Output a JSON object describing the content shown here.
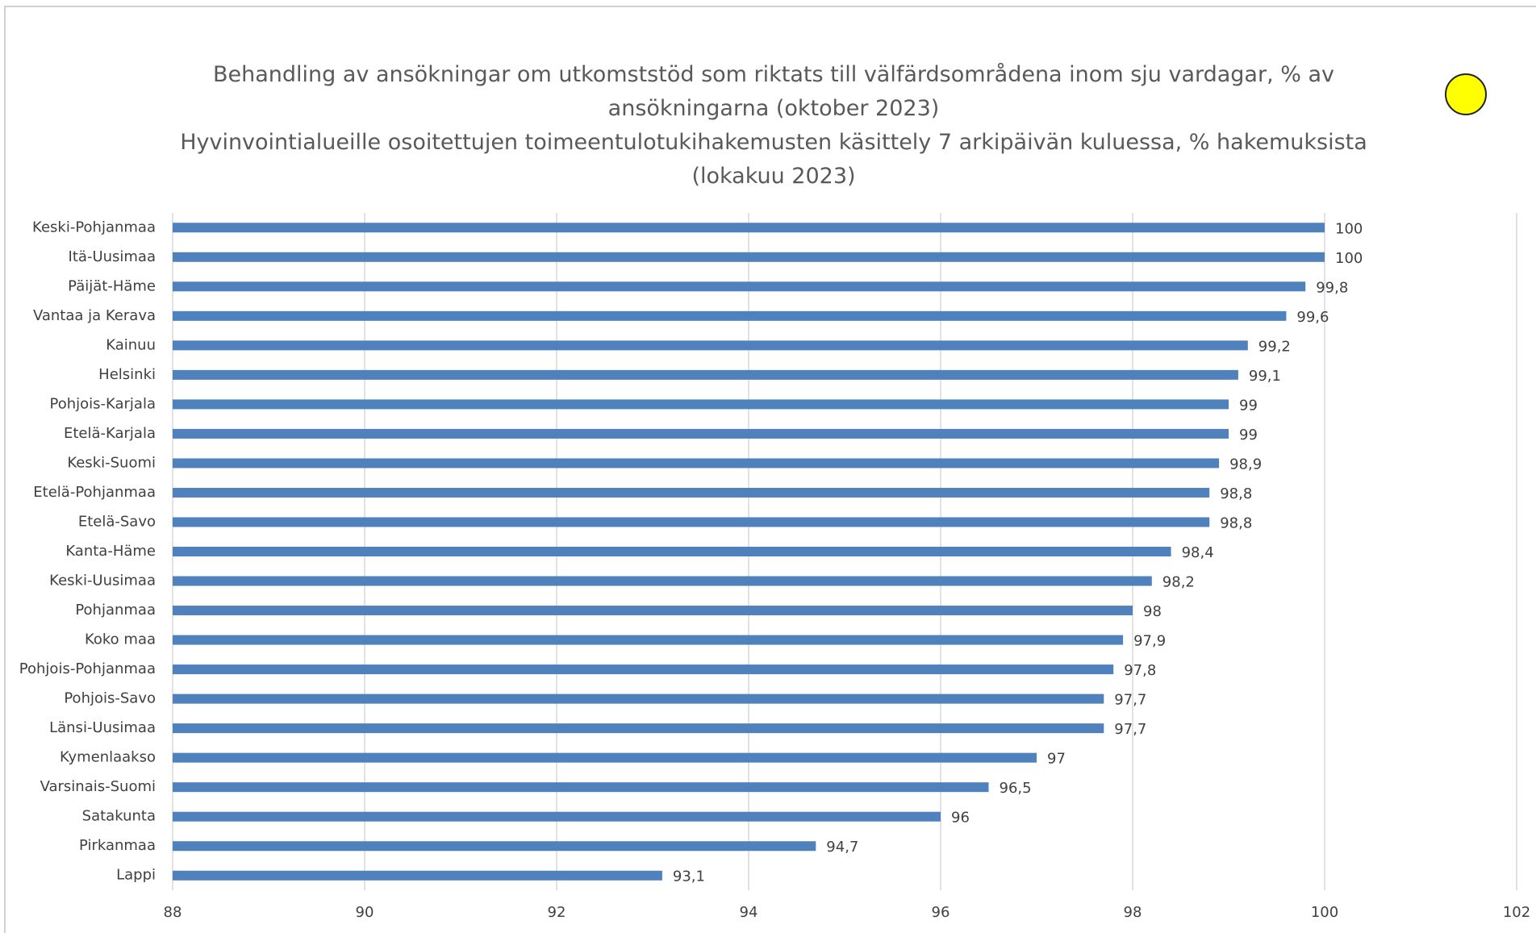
{
  "chart_data": {
    "type": "bar",
    "orientation": "horizontal",
    "title": "Behandling av ansökningar om utkomststöd som riktats till välfärdsområdena inom sju vardagar, % av ansökningarna (oktober 2023)",
    "subtitle": "Hyvinvointialueille osoitettujen toimeentulotukihakemusten käsittely 7 arkipäivän kuluessa, % hakemuksista (lokakuu 2023)",
    "categories": [
      "Keski-Pohjanmaa",
      "Itä-Uusimaa",
      "Päijät-Häme",
      "Vantaa ja Kerava",
      "Kainuu",
      "Helsinki",
      "Pohjois-Karjala",
      "Etelä-Karjala",
      "Keski-Suomi",
      "Etelä-Pohjanmaa",
      "Etelä-Savo",
      "Kanta-Häme",
      "Keski-Uusimaa",
      "Pohjanmaa",
      "Koko maa",
      "Pohjois-Pohjanmaa",
      "Pohjois-Savo",
      "Länsi-Uusimaa",
      "Kymenlaakso",
      "Varsinais-Suomi",
      "Satakunta",
      "Pirkanmaa",
      "Lappi"
    ],
    "values": [
      100,
      100,
      99.8,
      99.6,
      99.2,
      99.1,
      99,
      99,
      98.9,
      98.8,
      98.8,
      98.4,
      98.2,
      98,
      97.9,
      97.8,
      97.7,
      97.7,
      97,
      96.5,
      96,
      94.7,
      93.1
    ],
    "value_labels": [
      "100",
      "100",
      "99,8",
      "99,6",
      "99,2",
      "99,1",
      "99",
      "99",
      "98,9",
      "98,8",
      "98,8",
      "98,4",
      "98,2",
      "98",
      "97,9",
      "97,8",
      "97,7",
      "97,7",
      "97",
      "96,5",
      "96",
      "94,7",
      "93,1"
    ],
    "color": "#4f81bd",
    "xlim": [
      88,
      102
    ],
    "xticks": [
      88,
      90,
      92,
      94,
      96,
      98,
      100,
      102
    ],
    "grid": true
  }
}
